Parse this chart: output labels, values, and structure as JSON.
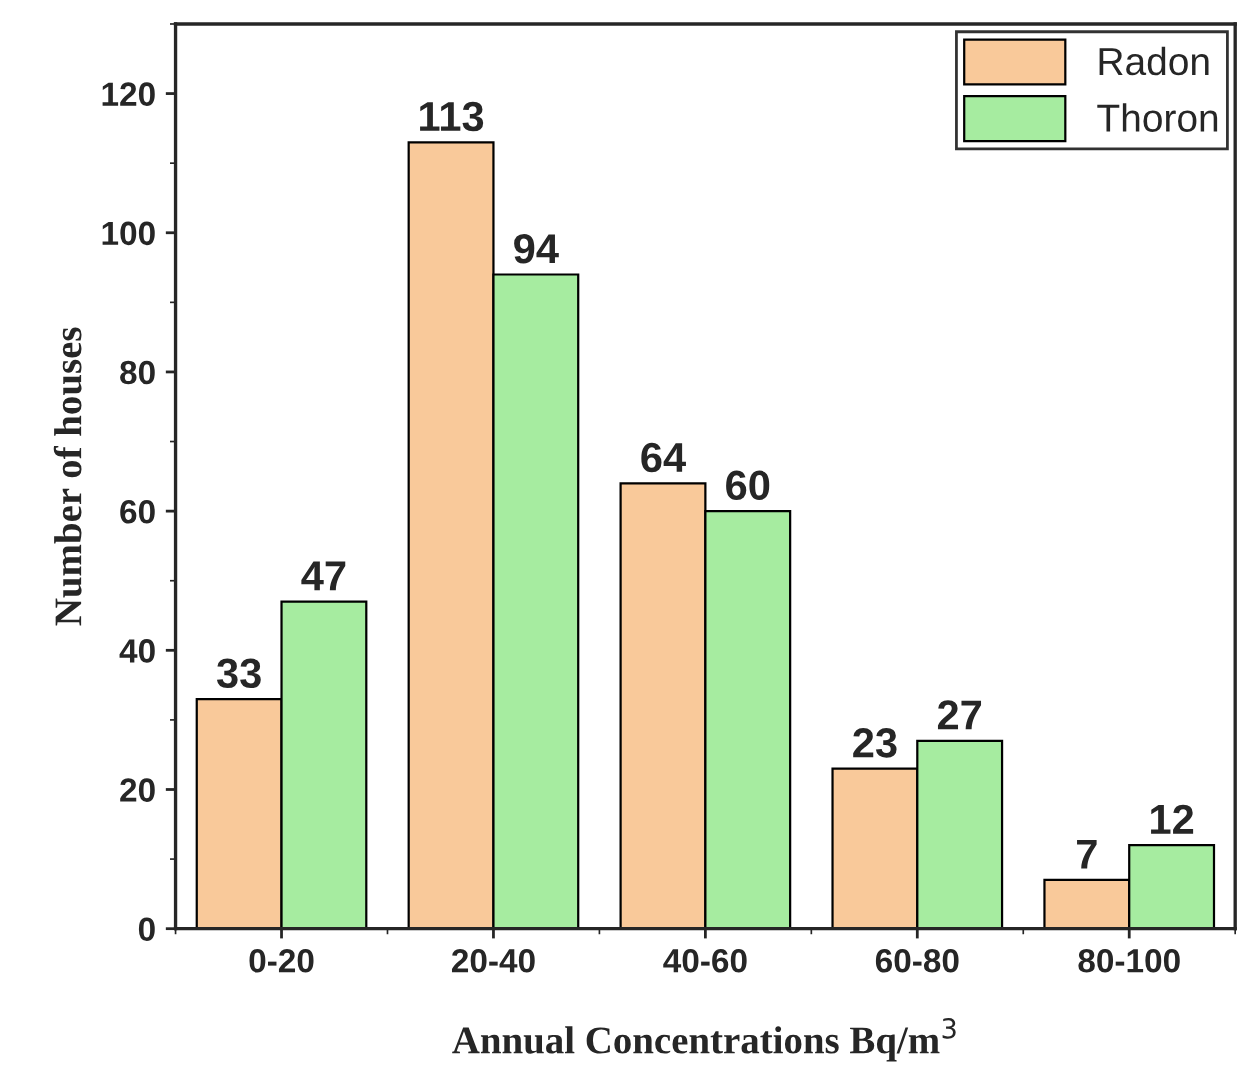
{
  "chart_data": {
    "type": "bar",
    "xlabel": "Annual Concentrations Bq/m$^{3}$",
    "ylabel": "Number of houses",
    "categories": [
      "0-20",
      "20-40",
      "40-60",
      "60-80",
      "80-100"
    ],
    "series": [
      {
        "name": "Radon",
        "color": "#f9c99a",
        "values": [
          33,
          113,
          64,
          23,
          7
        ]
      },
      {
        "name": "Thoron",
        "color": "#a6eca0",
        "values": [
          47,
          94,
          60,
          27,
          12
        ]
      }
    ],
    "ylim": [
      0,
      130
    ],
    "yticks": [
      0,
      20,
      40,
      60,
      80,
      100,
      120
    ],
    "data_labels": true,
    "legend": "top right",
    "grid": false
  }
}
